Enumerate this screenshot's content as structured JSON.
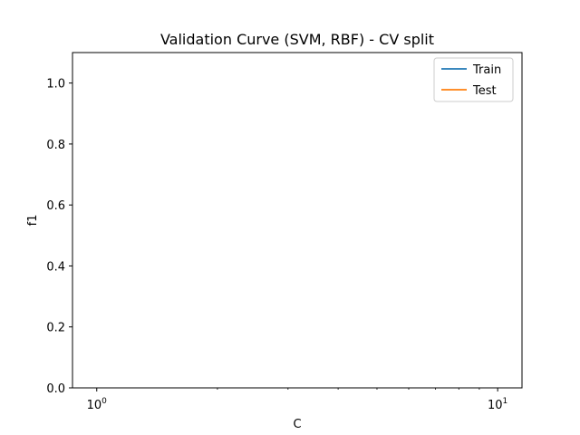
{
  "chart_data": {
    "type": "line",
    "title": "Validation Curve (SVM, RBF) - CV split",
    "xlabel": "C",
    "ylabel": "f1",
    "xscale": "log",
    "xlim": [
      0.87,
      11.5
    ],
    "ylim": [
      0.0,
      1.1
    ],
    "grid": false,
    "legend_position": "top-right",
    "x_ticks": [
      {
        "value": 1,
        "base": "10",
        "exp": "0"
      },
      {
        "value": 10,
        "base": "10",
        "exp": "1"
      }
    ],
    "x_minor_ticks": [
      2,
      3,
      4,
      5,
      6,
      7,
      8,
      9
    ],
    "y_ticks": [
      {
        "value": 0.0,
        "label": "0.0"
      },
      {
        "value": 0.2,
        "label": "0.2"
      },
      {
        "value": 0.4,
        "label": "0.4"
      },
      {
        "value": 0.6,
        "label": "0.6"
      },
      {
        "value": 0.8,
        "label": "0.8"
      },
      {
        "value": 1.0,
        "label": "1.0"
      }
    ],
    "series": [
      {
        "name": "Train",
        "color": "#1f77b4",
        "x": [],
        "y": []
      },
      {
        "name": "Test",
        "color": "#ff7f0e",
        "x": [],
        "y": []
      }
    ]
  }
}
